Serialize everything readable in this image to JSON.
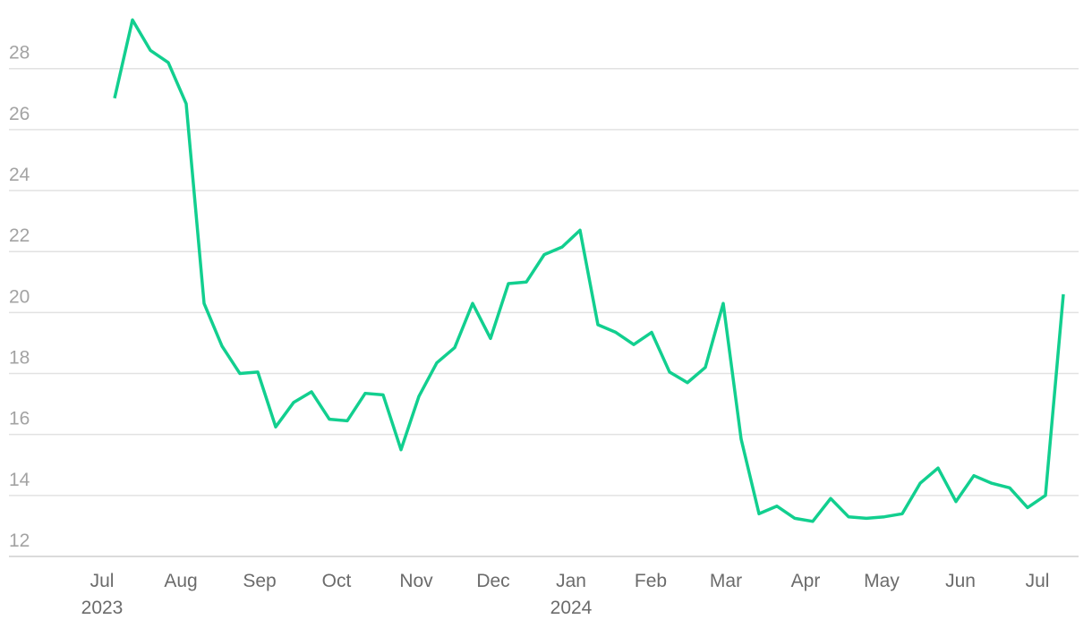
{
  "chart_data": {
    "type": "line",
    "x": [
      0,
      1,
      2,
      3,
      4,
      5,
      6,
      7,
      8,
      9,
      10,
      11,
      12,
      13,
      14,
      15,
      16,
      17,
      18,
      19,
      20,
      21,
      22,
      23,
      24,
      25,
      26,
      27,
      28,
      29,
      30,
      31,
      32,
      33,
      34,
      35,
      36,
      37,
      38,
      39,
      40,
      41,
      42,
      43,
      44,
      45,
      46,
      47,
      48,
      49,
      50,
      51,
      52,
      53
    ],
    "series": [
      {
        "color": "#12cf8f",
        "values": [
          27.03,
          29.6,
          28.6,
          28.2,
          26.85,
          20.3,
          18.9,
          18.0,
          18.05,
          16.25,
          17.05,
          17.4,
          16.5,
          16.45,
          17.35,
          17.3,
          15.5,
          17.25,
          18.35,
          18.85,
          20.3,
          19.15,
          20.95,
          21.0,
          21.9,
          22.15,
          22.7,
          19.6,
          19.35,
          18.95,
          19.35,
          18.05,
          17.7,
          18.2,
          20.3,
          15.85,
          13.4,
          13.65,
          13.25,
          13.15,
          13.9,
          13.3,
          13.25,
          13.3,
          13.4,
          14.4,
          14.9,
          13.8,
          14.65,
          14.4,
          14.25,
          13.6,
          14.0,
          20.6
        ]
      }
    ],
    "xlim": [
      -5.9,
      53.85
    ],
    "xticks": [
      {
        "value": -0.7,
        "label": "Jul 2023"
      },
      {
        "value": 3.7,
        "label": "Aug"
      },
      {
        "value": 8.1,
        "label": "Sep"
      },
      {
        "value": 12.4,
        "label": "Oct"
      },
      {
        "value": 16.85,
        "label": "Nov"
      },
      {
        "value": 21.15,
        "label": "Dec"
      },
      {
        "value": 25.5,
        "label": "Jan 2024"
      },
      {
        "value": 29.95,
        "label": "Feb"
      },
      {
        "value": 34.15,
        "label": "Mar"
      },
      {
        "value": 38.6,
        "label": "Apr"
      },
      {
        "value": 42.85,
        "label": "May"
      },
      {
        "value": 47.25,
        "label": "Jun"
      },
      {
        "value": 51.55,
        "label": "Jul"
      }
    ],
    "ylim": [
      12,
      29.9
    ],
    "yticks": [
      12,
      14,
      16,
      18,
      20,
      22,
      24,
      26,
      28
    ],
    "grid": true
  }
}
